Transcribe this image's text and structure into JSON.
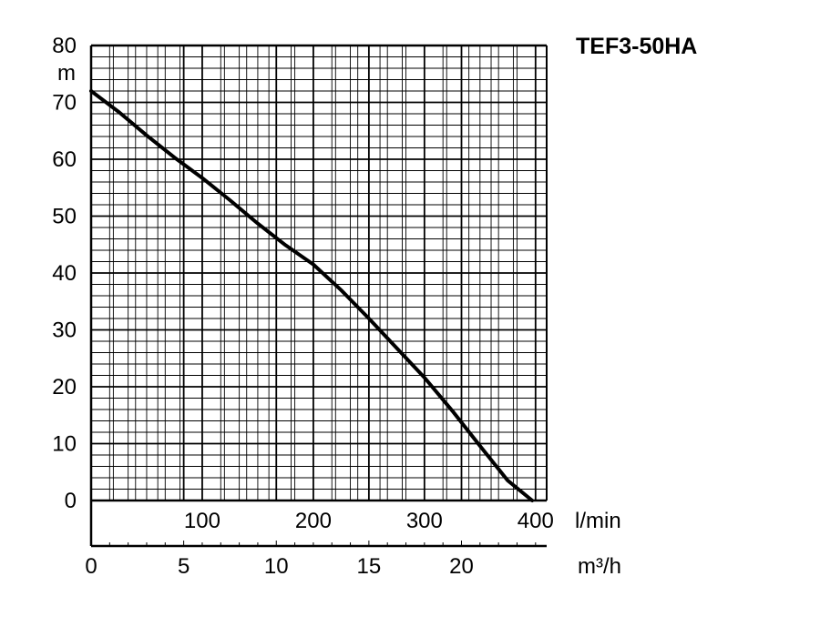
{
  "chart_data": {
    "type": "line",
    "title": "TEF3-50HA",
    "y_unit": "m",
    "x_unit_primary": "l/min",
    "x_unit_secondary": "m³/h",
    "ylim": [
      0,
      80
    ],
    "y_ticks": [
      0,
      10,
      20,
      30,
      40,
      50,
      60,
      70,
      80
    ],
    "xlim_lmin": [
      0,
      410
    ],
    "x_ticks_lmin": [
      100,
      200,
      300,
      400
    ],
    "x_ticks_m3h": [
      0,
      5,
      10,
      15,
      20
    ],
    "grid": true,
    "series": [
      {
        "x": [
          0,
          25,
          50,
          75,
          100,
          125,
          150,
          175,
          200,
          225,
          250,
          275,
          300,
          325,
          350,
          375,
          397
        ],
        "y": [
          72,
          68.3,
          64.2,
          60.3,
          56.7,
          52.8,
          48.7,
          44.9,
          41.5,
          37.0,
          32.0,
          26.8,
          21.6,
          15.8,
          9.6,
          3.5,
          0
        ]
      }
    ]
  }
}
